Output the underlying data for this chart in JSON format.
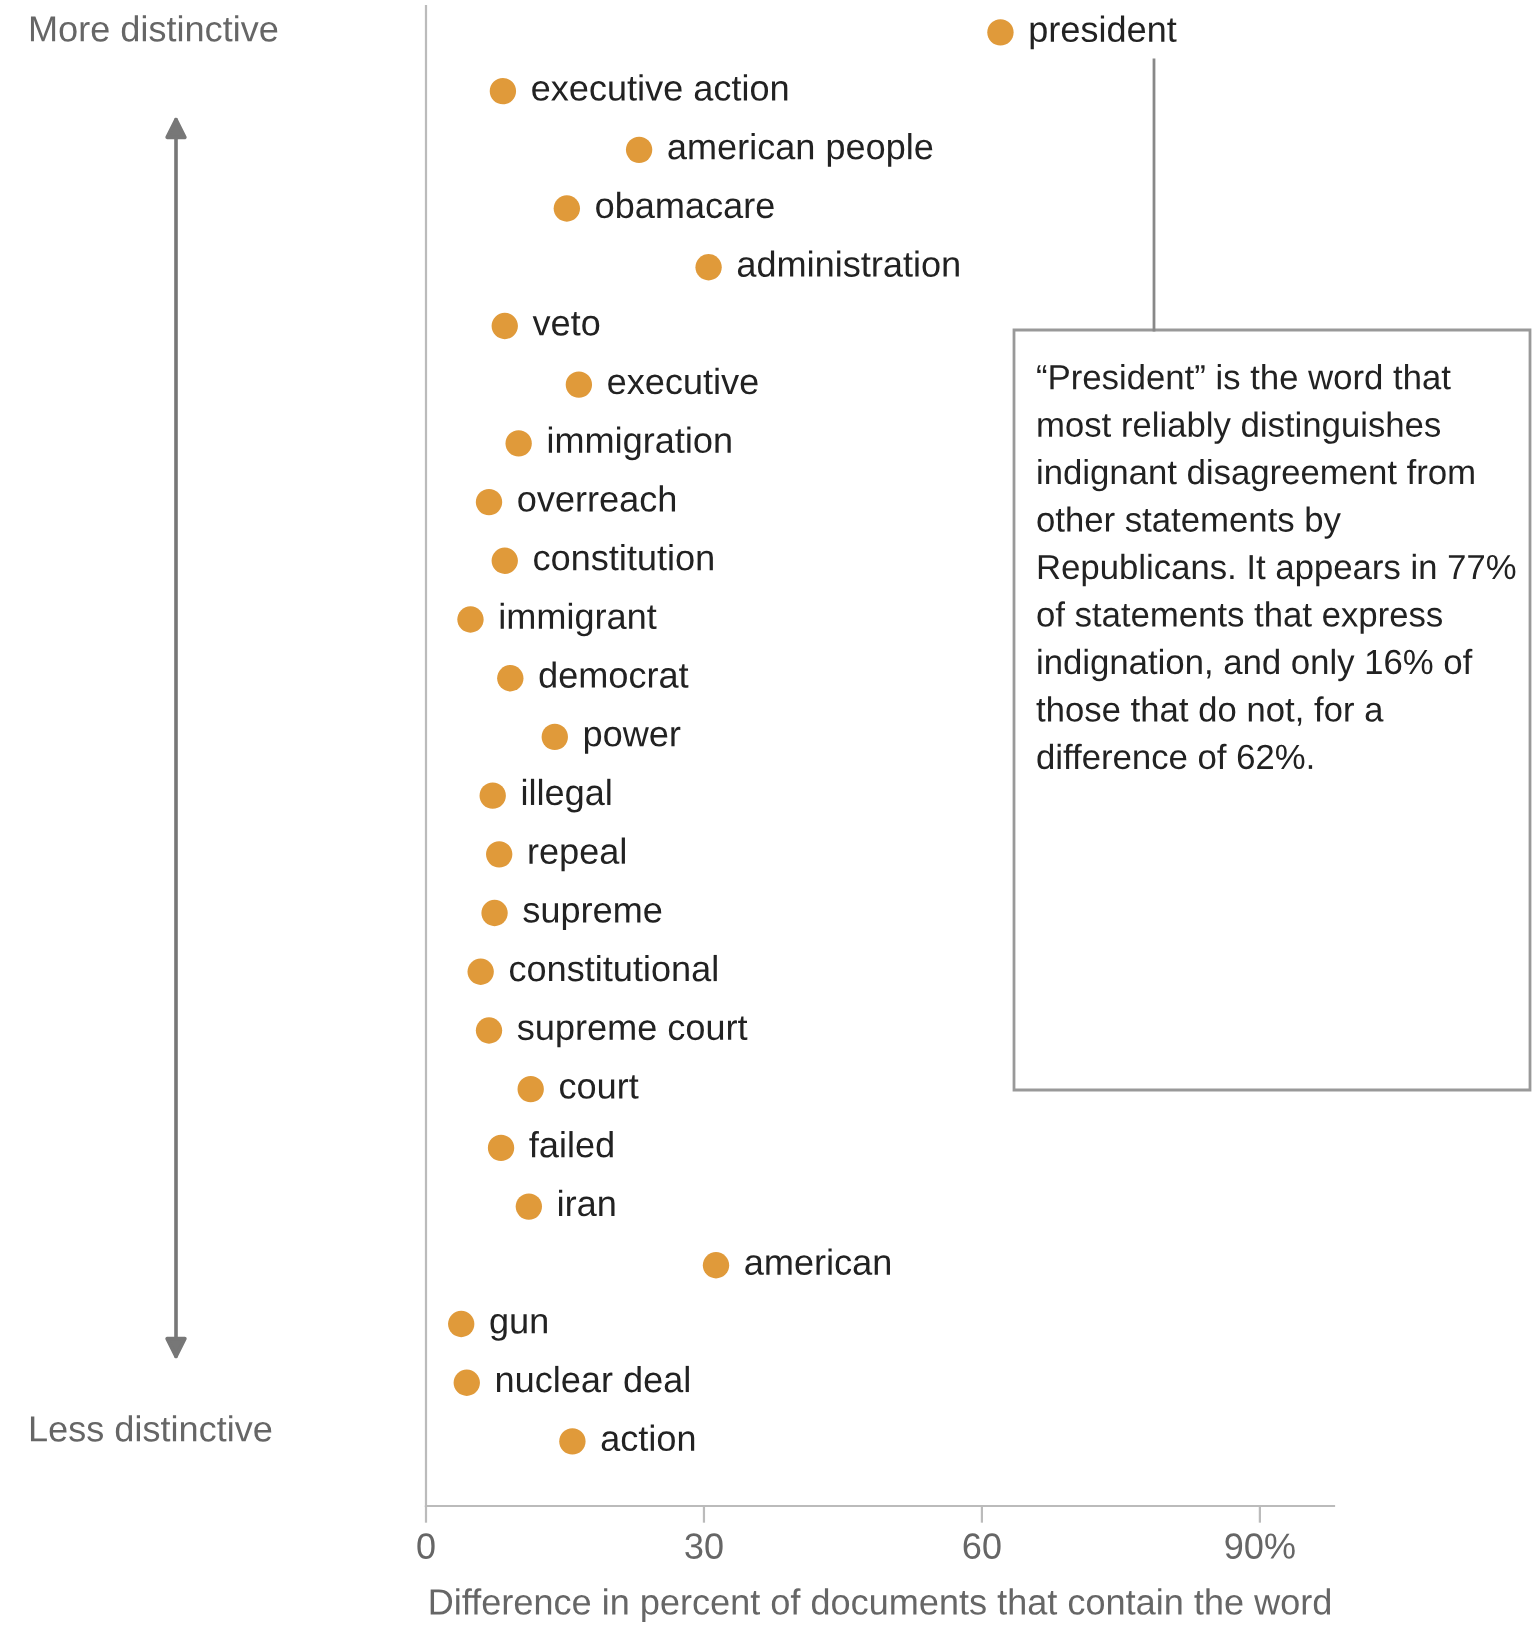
{
  "chart_data": {
    "type": "scatter",
    "orientation": "horizontal",
    "categories": [
      "president",
      "executive action",
      "american people",
      "obamacare",
      "administration",
      "veto",
      "executive",
      "immigration",
      "overreach",
      "constitution",
      "immigrant",
      "democrat",
      "power",
      "illegal",
      "repeal",
      "supreme",
      "constitutional",
      "supreme court",
      "court",
      "failed",
      "iran",
      "american",
      "gun",
      "nuclear deal",
      "action"
    ],
    "values": [
      62,
      8.3,
      23,
      15.2,
      30.5,
      8.5,
      16.5,
      10,
      6.8,
      8.5,
      4.8,
      9.1,
      13.9,
      7.2,
      7.9,
      7.4,
      5.9,
      6.8,
      11.3,
      8.1,
      11.1,
      31.3,
      3.8,
      4.4,
      15.8
    ],
    "color": "#e09a3a",
    "marker": "circle",
    "xlim": [
      0,
      98
    ],
    "xticks": [
      0,
      30,
      60,
      {
        "value": 90,
        "label": "90%"
      }
    ],
    "xlabel": "Difference in percent of documents that contain the word",
    "tick_labels": "x",
    "grid": false,
    "legend": false,
    "annotations": [
      "More distinctive",
      "Less distinctive",
      "“President” is the word that most reliably distinguishes indignant disagreement from other statements by Republicans. It appears in 77% of statements that express indignation, and only 16% of those that do not, for a difference of 62%."
    ]
  }
}
